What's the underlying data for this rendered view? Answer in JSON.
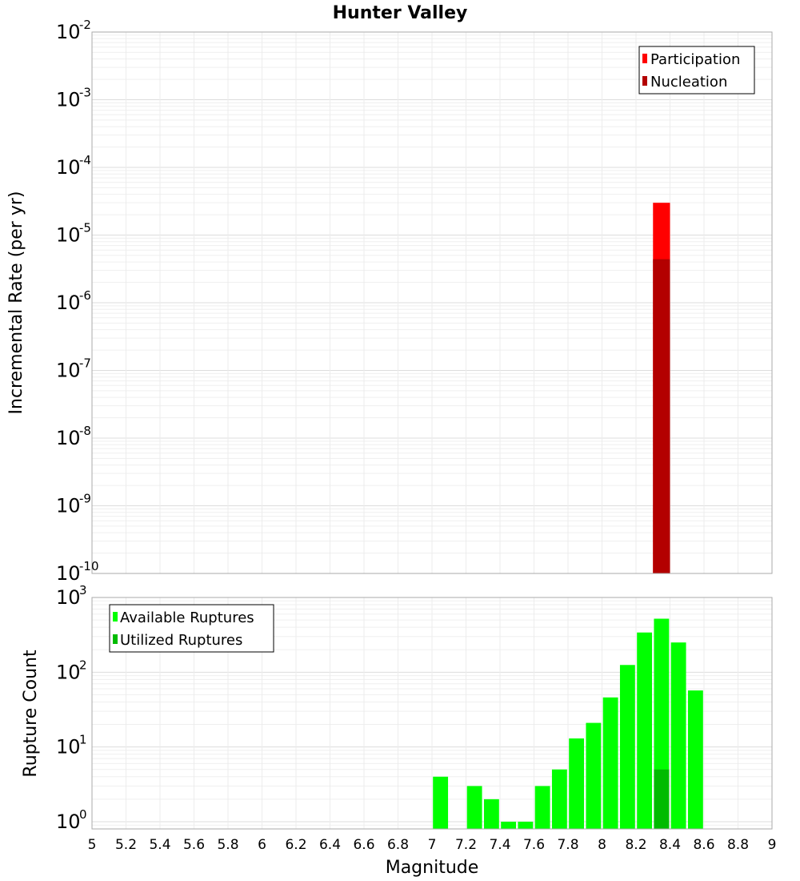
{
  "chart_data": [
    {
      "type": "bar",
      "title": "Hunter Valley",
      "ylabel": "Incremental Rate (per yr)",
      "xlabel": "",
      "xlim": [
        5,
        9
      ],
      "ylim": [
        1e-10,
        0.01
      ],
      "yscale": "log",
      "grid": true,
      "legend_position": "top-right",
      "bin_width": 0.1,
      "x": [
        8.35
      ],
      "series": [
        {
          "name": "Participation",
          "color": "#ff0000",
          "values": [
            3e-05
          ]
        },
        {
          "name": "Nucleation",
          "color": "#b30000",
          "values": [
            4.4e-06
          ]
        }
      ]
    },
    {
      "type": "bar",
      "title": "",
      "ylabel": "Rupture Count",
      "xlabel": "Magnitude",
      "xlim": [
        5,
        9
      ],
      "ylim": [
        0.8,
        1000
      ],
      "yscale": "log",
      "grid": true,
      "legend_position": "top-left",
      "bin_width": 0.1,
      "x": [
        7.05,
        7.25,
        7.35,
        7.45,
        7.55,
        7.65,
        7.75,
        7.85,
        7.95,
        8.05,
        8.15,
        8.25,
        8.35,
        8.45,
        8.55
      ],
      "series": [
        {
          "name": "Available Ruptures",
          "color": "#00ff00",
          "values": [
            4,
            3,
            2,
            1,
            1,
            3,
            5,
            13,
            21,
            46,
            125,
            340,
            520,
            250,
            57
          ]
        },
        {
          "name": "Utilized Ruptures",
          "color": "#00bb00",
          "values": [
            0,
            0,
            0,
            0,
            0,
            0,
            0,
            0,
            0,
            0,
            0,
            0,
            5,
            0,
            0
          ]
        }
      ]
    }
  ],
  "x_ticks": [
    "5",
    "5.2",
    "5.4",
    "5.6",
    "5.8",
    "6",
    "6.2",
    "6.4",
    "6.6",
    "6.8",
    "7",
    "7.2",
    "7.4",
    "7.6",
    "7.8",
    "8",
    "8.2",
    "8.4",
    "8.6",
    "8.8",
    "9"
  ],
  "top_y_ticks": [
    {
      "base": "10",
      "exp": "-2"
    },
    {
      "base": "10",
      "exp": "-3"
    },
    {
      "base": "10",
      "exp": "-4"
    },
    {
      "base": "10",
      "exp": "-5"
    },
    {
      "base": "10",
      "exp": "-6"
    },
    {
      "base": "10",
      "exp": "-7"
    },
    {
      "base": "10",
      "exp": "-8"
    },
    {
      "base": "10",
      "exp": "-9"
    },
    {
      "base": "10",
      "exp": "-10"
    }
  ],
  "bottom_y_ticks": [
    {
      "base": "10",
      "exp": "3"
    },
    {
      "base": "10",
      "exp": "2"
    },
    {
      "base": "10",
      "exp": "1"
    },
    {
      "base": "10",
      "exp": "0"
    }
  ]
}
